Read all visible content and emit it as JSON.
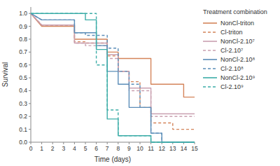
{
  "chart_data": {
    "type": "line",
    "title": "Treatment combination",
    "xlabel": "Time (days)",
    "ylabel": "Survival",
    "xlim": [
      0,
      15
    ],
    "ylim": [
      0,
      1.05
    ],
    "xticks": [
      0,
      1,
      2,
      3,
      4,
      5,
      6,
      7,
      8,
      9,
      10,
      11,
      12,
      13,
      14,
      15
    ],
    "yticks": [
      {
        "value": 0.0,
        "label": "0.0"
      },
      0.1,
      0.2,
      0.3,
      0.4,
      0.5,
      0.6,
      0.7,
      0.8,
      0.9,
      {
        "value": 1.0,
        "label": "1.0"
      }
    ],
    "grid": false,
    "legend": "right",
    "series": [
      {
        "name": "NonCl-triton",
        "color": "#d4845a",
        "line_style": "solid",
        "x": [
          0,
          1,
          4,
          4,
          5,
          5,
          7,
          7,
          8,
          8,
          11,
          11,
          14,
          14,
          15
        ],
        "values": [
          1.0,
          0.9,
          0.9,
          0.8,
          0.8,
          0.8,
          0.8,
          0.7,
          0.7,
          0.65,
          0.65,
          0.45,
          0.45,
          0.35,
          0.35
        ]
      },
      {
        "name": "Cl-triton",
        "color": "#d4845a",
        "line_style": "dashed",
        "x": [
          0,
          1,
          4,
          4,
          5,
          5,
          7,
          7,
          8,
          8,
          9,
          9,
          10,
          10,
          11,
          11,
          13,
          13,
          15
        ],
        "values": [
          1.0,
          0.91,
          0.91,
          0.78,
          0.78,
          0.77,
          0.77,
          0.67,
          0.67,
          0.55,
          0.55,
          0.47,
          0.47,
          0.27,
          0.27,
          0.15,
          0.15,
          0.1,
          0.1
        ]
      },
      {
        "name": "NonCl-2.10⁷",
        "color": "#c9a0b0",
        "line_style": "solid",
        "x": [
          0,
          1,
          4,
          4,
          5,
          5,
          7,
          7,
          8,
          8,
          9,
          9,
          11,
          11,
          15
        ],
        "values": [
          1.0,
          0.91,
          0.91,
          0.77,
          0.77,
          0.77,
          0.77,
          0.68,
          0.68,
          0.55,
          0.55,
          0.42,
          0.42,
          0.22,
          0.22
        ]
      },
      {
        "name": "Cl-2.10⁷",
        "color": "#c9a0b0",
        "line_style": "dashed",
        "x": [
          0,
          1,
          4,
          4,
          5,
          5,
          7,
          7,
          8,
          8,
          9,
          9,
          11,
          11,
          15
        ],
        "values": [
          1.0,
          0.91,
          0.91,
          0.77,
          0.77,
          0.75,
          0.75,
          0.65,
          0.65,
          0.55,
          0.55,
          0.4,
          0.4,
          0.2,
          0.2
        ]
      },
      {
        "name": "NonCl-2.10⁸",
        "color": "#5b8db8",
        "line_style": "solid",
        "x": [
          0,
          1,
          4,
          4,
          5,
          5,
          6,
          6,
          7,
          7,
          8,
          8,
          9,
          9,
          11,
          11,
          12,
          12,
          15
        ],
        "values": [
          1.0,
          0.95,
          0.95,
          0.85,
          0.85,
          0.85,
          0.85,
          0.75,
          0.75,
          0.55,
          0.55,
          0.45,
          0.45,
          0.27,
          0.27,
          0.07,
          0.07,
          0.0,
          0.0
        ]
      },
      {
        "name": "Cl-2.10⁸",
        "color": "#5b8db8",
        "line_style": "dashed",
        "x": [
          0,
          1,
          4,
          4,
          5,
          5,
          7,
          7,
          8,
          8,
          9,
          9,
          10,
          10,
          11,
          11,
          12,
          12,
          15
        ],
        "values": [
          1.0,
          0.95,
          0.95,
          0.85,
          0.85,
          0.83,
          0.83,
          0.73,
          0.73,
          0.55,
          0.55,
          0.45,
          0.45,
          0.27,
          0.27,
          0.07,
          0.07,
          0.0,
          0.0
        ]
      },
      {
        "name": "NonCl-2.10⁹",
        "color": "#3dada8",
        "line_style": "solid",
        "x": [
          0,
          5,
          5,
          6,
          6,
          7,
          7,
          8,
          8,
          9,
          9,
          11,
          11,
          15
        ],
        "values": [
          1.0,
          1.0,
          0.95,
          0.95,
          0.72,
          0.72,
          0.18,
          0.18,
          0.05,
          0.05,
          0.05,
          0.05,
          0.0,
          0.0
        ]
      },
      {
        "name": "Cl-2.10⁹",
        "color": "#3dada8",
        "line_style": "dashed",
        "x": [
          0,
          6,
          6,
          7,
          7,
          8,
          8,
          9,
          9,
          10,
          10,
          11,
          11,
          15
        ],
        "values": [
          1.0,
          1.0,
          0.6,
          0.6,
          0.25,
          0.25,
          0.05,
          0.05,
          0.05,
          0.05,
          0.05,
          0.05,
          0.0,
          0.0
        ]
      }
    ]
  }
}
